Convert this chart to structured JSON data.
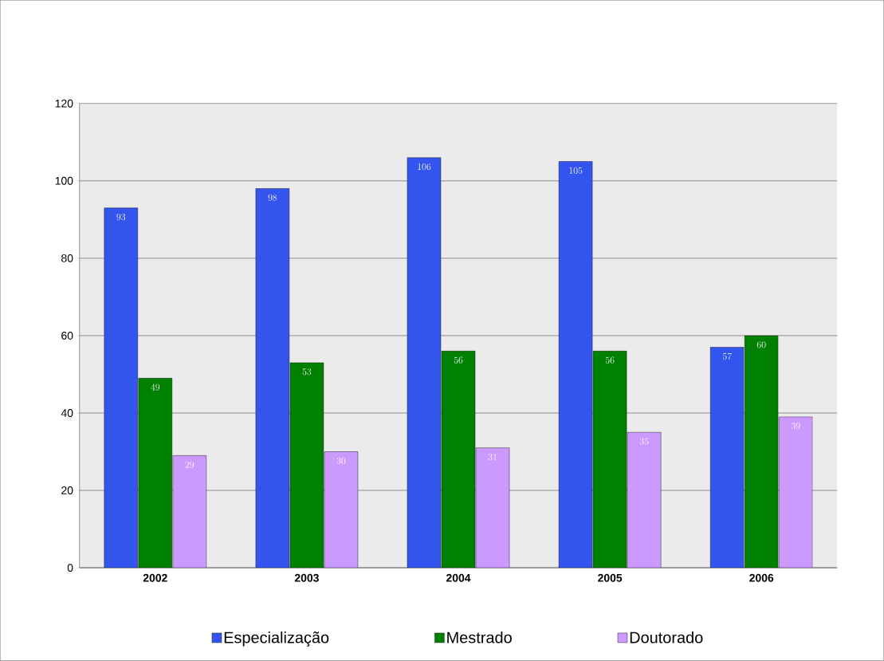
{
  "chart_data": {
    "type": "bar",
    "categories": [
      "2002",
      "2003",
      "2004",
      "2005",
      "2006"
    ],
    "series": [
      {
        "name": "Especialização",
        "color": "#3355ee",
        "values": [
          93,
          98,
          106,
          105,
          57
        ]
      },
      {
        "name": "Mestrado",
        "color": "#008000",
        "values": [
          49,
          53,
          56,
          56,
          60
        ]
      },
      {
        "name": "Doutorado",
        "color": "#cc99ff",
        "values": [
          29,
          30,
          31,
          35,
          39
        ]
      }
    ],
    "ylim": [
      0,
      120
    ],
    "yticks": [
      0,
      20,
      40,
      60,
      80,
      100,
      120
    ],
    "grid": "y",
    "legend": "bottom",
    "data_labels": true
  }
}
